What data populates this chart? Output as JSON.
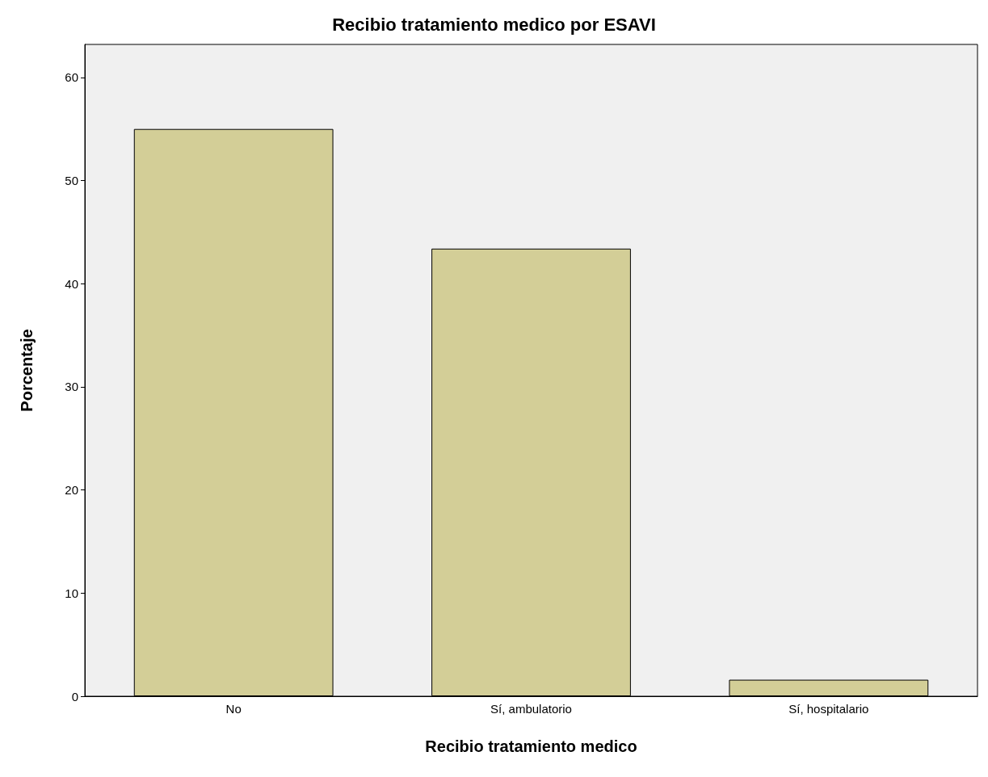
{
  "chart_data": {
    "type": "bar",
    "title": "Recibio tratamiento medico por ESAVI",
    "xlabel": "Recibio tratamiento medico",
    "ylabel": "Porcentaje",
    "categories": [
      "No",
      "Sí, ambulatorio",
      "Sí, hospitalario"
    ],
    "values": [
      55.0,
      43.4,
      1.6
    ],
    "color": "#d3ce97",
    "ylim": [
      0,
      63.2
    ],
    "yticks": [
      0,
      10,
      20,
      30,
      40,
      50,
      60
    ],
    "grid": false
  }
}
